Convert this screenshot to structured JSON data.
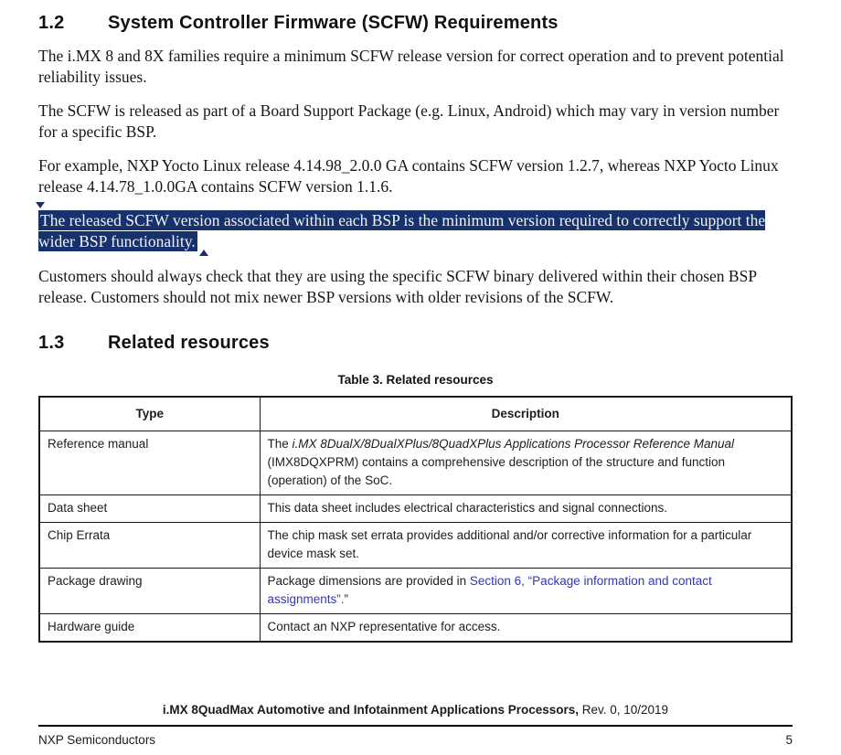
{
  "colors": {
    "highlight_background": "#17316d",
    "highlight_text": "#f3f3f3",
    "link_blue": "#3434bf"
  },
  "sections": {
    "scfw": {
      "number": "1.2",
      "title": "System Controller Firmware (SCFW) Requirements"
    },
    "related": {
      "number": "1.3",
      "title": "Related resources"
    }
  },
  "paragraphs": {
    "p1": "The i.MX 8 and 8X families require a minimum SCFW release version for correct operation and to prevent potential reliability issues.",
    "p2": "The SCFW is released as part of a Board Support Package (e.g. Linux, Android) which may vary in version number for a specific BSP.",
    "p3": "For example, NXP Yocto Linux release 4.14.98_2.0.0 GA contains SCFW version 1.2.7, whereas NXP Yocto Linux release 4.14.78_1.0.0GA contains SCFW version 1.1.6.",
    "p4_selected": "The released SCFW version associated within each BSP is the minimum version required to correctly support the wider BSP functionality.",
    "p5": "Customers should always check that they are using the specific SCFW binary delivered within their chosen BSP release. Customers should not mix newer BSP versions with older revisions of the SCFW."
  },
  "table": {
    "caption": "Table 3. Related resources",
    "headers": {
      "type": "Type",
      "description": "Description"
    },
    "rows": {
      "reference_manual": {
        "type": "Reference manual",
        "desc_prefix": "The ",
        "desc_italic": "i.MX 8DualX/8DualXPlus/8QuadXPlus Applications Processor Reference Manual",
        "desc_suffix": " (IMX8DQXPRM) contains a comprehensive description of the structure and function (operation) of the SoC."
      },
      "data_sheet": {
        "type": "Data sheet",
        "description": "This data sheet includes electrical characteristics and signal connections."
      },
      "chip_errata": {
        "type": "Chip Errata",
        "description": "The chip mask set errata provides additional and/or corrective information for a particular device mask set."
      },
      "package_drawing": {
        "type": "Package drawing",
        "desc_prefix": "Package dimensions are provided in ",
        "link_text": "Section 6, “Package information and contact assignments”.",
        "desc_suffix": "”"
      },
      "hardware_guide": {
        "type": "Hardware guide",
        "description": "Contact an NXP representative for access."
      }
    }
  },
  "footer": {
    "doc_title_bold": "i.MX 8QuadMax Automotive and Infotainment Applications Processors,",
    "doc_title_rest": " Rev. 0, 10/2019",
    "publisher": "NXP Semiconductors",
    "page_number": "5"
  }
}
